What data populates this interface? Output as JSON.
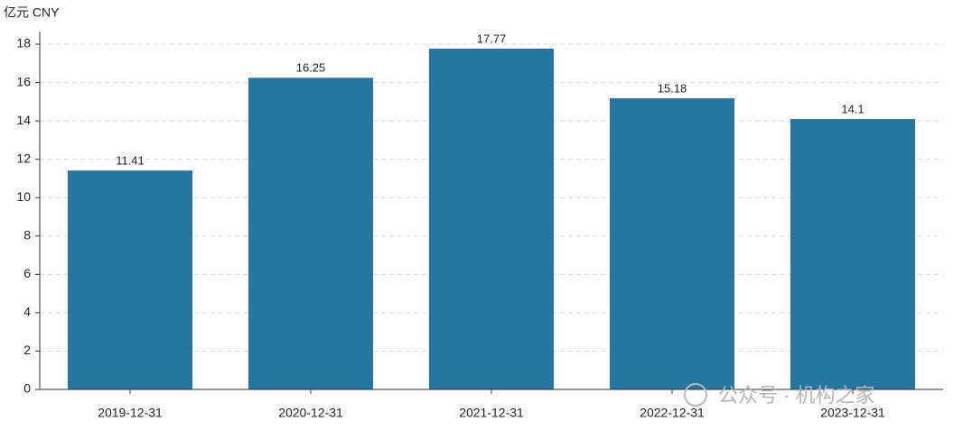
{
  "chart_data": {
    "type": "bar",
    "y_axis_label": "亿元  CNY",
    "categories": [
      "2019-12-31",
      "2020-12-31",
      "2021-12-31",
      "2022-12-31",
      "2023-12-31"
    ],
    "values": [
      11.41,
      16.25,
      17.77,
      15.18,
      14.1
    ],
    "color": "#2576a0",
    "ylim": [
      0,
      18.66
    ],
    "yticks": [
      0,
      2,
      4,
      6,
      8,
      10,
      12,
      14,
      16,
      18
    ],
    "grid": true,
    "watermark": "公众号 · 机构之家"
  }
}
